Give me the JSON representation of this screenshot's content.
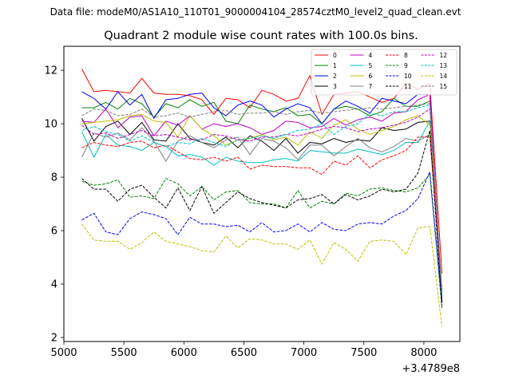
{
  "figure": {
    "suptitle": "Data file: modeM0/AS1A10_110T01_9000004104_28574cztM0_level2_quad_clean.evt",
    "x_offset_label": "+3.4789e8"
  },
  "chart_data": {
    "type": "line",
    "title": "Quadrant 2 module wise count rates with 100.0s bins.",
    "xlabel": "",
    "ylabel": "",
    "x_offset": 347890000,
    "xlim": [
      5000,
      8300
    ],
    "ylim": [
      1.85,
      12.9
    ],
    "xticks": [
      5000,
      5500,
      6000,
      6500,
      7000,
      7500,
      8000
    ],
    "yticks": [
      2,
      4,
      6,
      8,
      10,
      12
    ],
    "grid": false,
    "legend": {
      "placement": "top-right",
      "columns": 4
    },
    "x": [
      5150,
      5250,
      5350,
      5450,
      5550,
      5650,
      5750,
      5850,
      5950,
      6050,
      6150,
      6250,
      6350,
      6450,
      6550,
      6650,
      6750,
      6850,
      6950,
      7050,
      7150,
      7250,
      7350,
      7450,
      7550,
      7650,
      7750,
      7850,
      7950,
      8050,
      8150
    ],
    "series": [
      {
        "name": "0",
        "color": "#ff0000",
        "dash": "solid",
        "values": [
          12.05,
          11.2,
          11.25,
          11.2,
          11.15,
          11.7,
          11.15,
          11.1,
          11.1,
          11.05,
          10.9,
          10.35,
          10.95,
          10.9,
          10.6,
          11.25,
          11.1,
          10.85,
          10.95,
          11.8,
          10.35,
          11.1,
          11.15,
          11.2,
          11.0,
          10.8,
          10.95,
          11.5,
          11.3,
          11.5,
          4.4
        ]
      },
      {
        "name": "1",
        "color": "#008000",
        "dash": "solid",
        "values": [
          10.6,
          10.6,
          10.8,
          10.55,
          10.95,
          10.75,
          10.25,
          10.75,
          10.6,
          10.9,
          10.65,
          10.8,
          10.1,
          10.0,
          10.7,
          10.55,
          10.45,
          10.6,
          10.3,
          10.35,
          10.0,
          10.55,
          10.65,
          10.55,
          10.3,
          10.45,
          10.95,
          10.65,
          10.65,
          10.85,
          3.4
        ]
      },
      {
        "name": "2",
        "color": "#0000ff",
        "dash": "solid",
        "values": [
          11.2,
          10.95,
          10.55,
          11.2,
          10.7,
          11.1,
          10.2,
          10.9,
          10.95,
          11.1,
          11.15,
          10.6,
          10.3,
          10.7,
          10.85,
          10.7,
          10.25,
          10.55,
          10.75,
          10.6,
          10.0,
          10.55,
          10.85,
          10.65,
          10.4,
          10.95,
          10.85,
          10.75,
          11.1,
          11.1,
          3.3
        ]
      },
      {
        "name": "3",
        "color": "#000000",
        "dash": "solid",
        "values": [
          10.2,
          9.35,
          9.9,
          10.1,
          9.6,
          10.05,
          9.4,
          9.35,
          10.0,
          9.45,
          9.3,
          9.2,
          9.5,
          9.1,
          9.55,
          9.35,
          9.0,
          9.45,
          8.9,
          9.3,
          9.25,
          9.45,
          9.3,
          9.4,
          9.35,
          9.85,
          9.75,
          9.8,
          10.05,
          10.1,
          3.3
        ]
      },
      {
        "name": "4",
        "color": "#bf00bf",
        "dash": "solid",
        "values": [
          10.1,
          10.05,
          10.55,
          9.85,
          10.25,
          10.3,
          9.55,
          10.1,
          9.95,
          10.3,
          9.8,
          10.0,
          9.9,
          10.0,
          9.85,
          9.6,
          9.75,
          10.1,
          10.05,
          9.85,
          9.9,
          10.2,
          9.95,
          10.15,
          10.25,
          10.1,
          10.4,
          10.45,
          10.9,
          11.1,
          3.5
        ]
      },
      {
        "name": "5",
        "color": "#00bfbf",
        "dash": "solid",
        "values": [
          9.7,
          8.75,
          9.6,
          9.2,
          9.15,
          9.0,
          9.3,
          9.15,
          8.8,
          8.85,
          8.75,
          8.45,
          8.75,
          8.6,
          8.55,
          8.55,
          8.65,
          8.7,
          8.6,
          9.0,
          8.95,
          8.9,
          8.9,
          9.05,
          8.95,
          8.85,
          9.0,
          9.3,
          9.3,
          10.1,
          3.6
        ]
      },
      {
        "name": "6",
        "color": "#bfbf00",
        "dash": "solid",
        "values": [
          10.0,
          10.05,
          10.1,
          10.15,
          10.3,
          10.35,
          10.1,
          10.05,
          9.5,
          10.3,
          9.8,
          9.55,
          9.2,
          9.4,
          9.45,
          9.6,
          9.4,
          9.5,
          9.2,
          9.7,
          9.45,
          9.95,
          10.15,
          9.8,
          9.6,
          9.75,
          9.9,
          10.15,
          10.3,
          9.95,
          3.6
        ]
      },
      {
        "name": "7",
        "color": "#808080",
        "dash": "solid",
        "values": [
          8.75,
          9.65,
          9.5,
          9.65,
          9.4,
          9.85,
          9.35,
          8.6,
          9.35,
          9.55,
          9.3,
          9.1,
          9.4,
          9.5,
          8.85,
          9.45,
          9.35,
          9.1,
          8.65,
          9.2,
          9.2,
          8.8,
          9.15,
          9.45,
          9.1,
          8.95,
          9.15,
          9.45,
          9.35,
          9.6,
          3.5
        ]
      },
      {
        "name": "8",
        "color": "#ff0000",
        "dash": "dashed",
        "values": [
          9.1,
          9.3,
          9.2,
          9.15,
          9.3,
          9.35,
          9.1,
          9.2,
          8.95,
          8.7,
          8.65,
          8.75,
          8.6,
          8.75,
          8.3,
          8.45,
          8.4,
          8.4,
          8.35,
          8.35,
          8.1,
          8.6,
          8.45,
          8.8,
          8.35,
          8.65,
          8.8,
          9.0,
          9.5,
          9.5,
          3.8
        ]
      },
      {
        "name": "9",
        "color": "#008000",
        "dash": "dashed",
        "values": [
          7.85,
          7.7,
          7.75,
          7.9,
          7.25,
          7.3,
          7.2,
          7.95,
          7.75,
          7.3,
          7.65,
          7.15,
          7.45,
          7.5,
          7.05,
          7.0,
          7.0,
          6.85,
          7.5,
          6.85,
          7.1,
          7.0,
          7.4,
          7.3,
          7.55,
          7.6,
          7.5,
          7.45,
          7.6,
          8.1,
          3.1
        ]
      },
      {
        "name": "10",
        "color": "#0000ff",
        "dash": "dashed",
        "values": [
          6.4,
          6.65,
          5.95,
          5.85,
          6.45,
          6.7,
          6.6,
          6.45,
          5.85,
          6.5,
          6.25,
          6.25,
          6.15,
          6.2,
          5.95,
          6.3,
          5.95,
          6.0,
          6.25,
          5.95,
          6.3,
          6.05,
          6.0,
          6.25,
          6.3,
          6.25,
          6.55,
          6.75,
          7.2,
          8.2,
          3.3
        ]
      },
      {
        "name": "11",
        "color": "#000000",
        "dash": "dashed",
        "values": [
          7.95,
          7.55,
          7.55,
          7.1,
          7.55,
          7.7,
          7.25,
          6.85,
          7.6,
          6.75,
          7.65,
          6.65,
          7.05,
          7.45,
          7.2,
          7.05,
          6.95,
          6.85,
          7.15,
          7.2,
          7.35,
          7.0,
          7.35,
          7.15,
          7.3,
          7.55,
          7.45,
          7.55,
          8.15,
          9.75,
          3.2
        ]
      },
      {
        "name": "12",
        "color": "#bf00bf",
        "dash": "dashed",
        "values": [
          9.95,
          9.6,
          9.65,
          9.45,
          9.6,
          9.75,
          9.55,
          9.6,
          9.5,
          9.4,
          9.4,
          9.6,
          9.55,
          9.4,
          9.35,
          9.5,
          9.5,
          9.6,
          9.55,
          9.65,
          9.8,
          9.9,
          9.85,
          9.7,
          9.8,
          9.85,
          9.95,
          10.05,
          10.25,
          10.55,
          3.6
        ]
      },
      {
        "name": "13",
        "color": "#00bfbf",
        "dash": "dashed",
        "values": [
          9.75,
          9.9,
          9.7,
          9.6,
          9.35,
          9.55,
          9.3,
          9.15,
          9.3,
          9.25,
          9.45,
          9.3,
          9.15,
          9.4,
          9.45,
          9.55,
          9.45,
          9.6,
          9.75,
          9.8,
          10.0,
          9.6,
          9.9,
          10.0,
          10.4,
          10.3,
          10.45,
          10.45,
          10.6,
          10.7,
          3.6
        ]
      },
      {
        "name": "14",
        "color": "#bfbf00",
        "dash": "dashed",
        "values": [
          6.25,
          5.65,
          5.6,
          5.6,
          5.3,
          5.55,
          5.95,
          5.6,
          5.5,
          5.4,
          5.25,
          5.2,
          5.8,
          5.35,
          5.7,
          5.65,
          5.5,
          5.5,
          5.3,
          5.65,
          4.75,
          5.55,
          5.3,
          4.85,
          5.6,
          5.65,
          5.6,
          5.1,
          6.1,
          6.15,
          2.4
        ]
      },
      {
        "name": "15",
        "color": "#808080",
        "dash": "dashed",
        "values": [
          10.3,
          10.55,
          10.5,
          10.3,
          10.35,
          10.55,
          10.25,
          10.3,
          10.4,
          10.25,
          10.35,
          10.45,
          10.5,
          10.35,
          10.4,
          10.4,
          10.45,
          10.35,
          10.45,
          10.5,
          10.4,
          10.45,
          10.5,
          10.55,
          10.6,
          10.55,
          10.6,
          10.65,
          10.7,
          10.75,
          3.7
        ]
      }
    ]
  }
}
